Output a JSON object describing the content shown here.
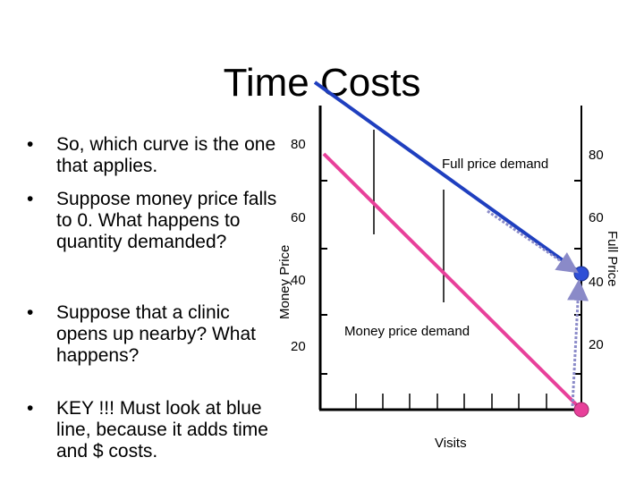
{
  "slide": {
    "title": "Time Costs",
    "bullets": [
      "So, which curve is the one that applies.",
      "Suppose money price falls to 0.  What happens to quantity demanded?",
      "Suppose that a clinic opens up nearby?  What happens?",
      "KEY !!! Must look at blue line, because it adds time and $ costs."
    ],
    "bullet_glyph": "•"
  },
  "chart_data": {
    "type": "line",
    "y_left_label": "Money Price",
    "y_right_label": "Full Price",
    "x_label": "Visits",
    "y_ticks_left": [
      "80",
      "60",
      "40",
      "20"
    ],
    "y_ticks_right": [
      "80",
      "60",
      "40",
      "20"
    ],
    "series": [
      {
        "name": "Full price demand",
        "color": "#1f3fbf"
      },
      {
        "name": "Money price demand",
        "color": "#e8409a"
      }
    ],
    "arrow_color": "#8a8ac8"
  }
}
